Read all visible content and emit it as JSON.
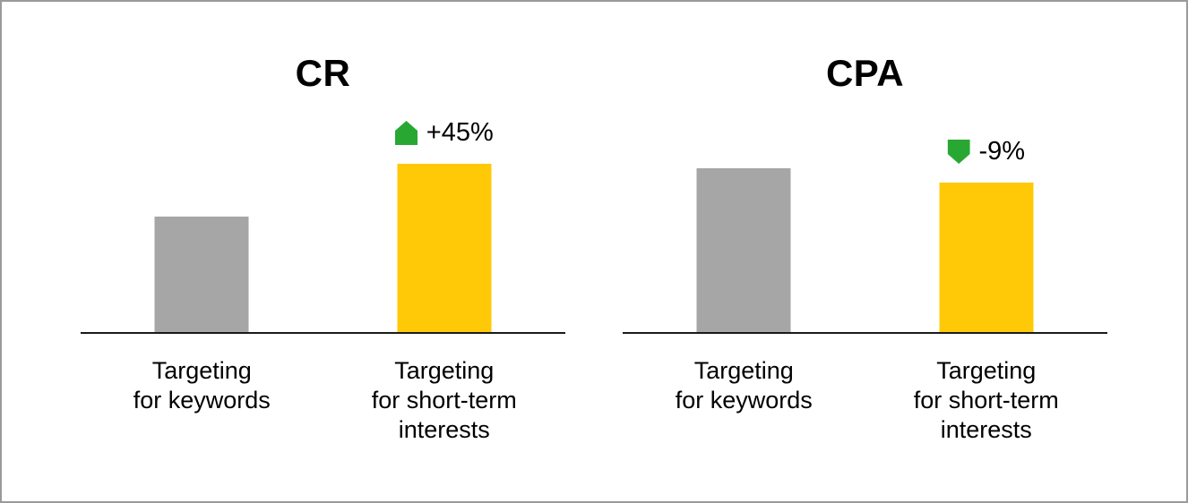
{
  "canvas": {
    "background": "#ffffff",
    "border_color": "#9a9a9a",
    "axis_color": "#1a1a1a"
  },
  "chart_data": [
    {
      "type": "bar",
      "title": "CR",
      "categories": [
        "Targeting for keywords",
        "Targeting for short-term interests"
      ],
      "categories_display": [
        "Targeting\nfor keywords",
        "Targeting\nfor short-term\ninterests"
      ],
      "values": [
        100,
        145
      ],
      "values_note": "relative index read from bar heights; no numeric axis shown, keywords bar = 100 baseline",
      "bar_colors": [
        "#A6A6A6",
        "#FFC907"
      ],
      "annotation": {
        "text": "+45%",
        "icon": "up-arrow",
        "color": "#28A832",
        "applies_to": "Targeting for short-term interests"
      },
      "xlabel": "",
      "ylabel": "",
      "ylim": [
        0,
        170
      ],
      "grid": false,
      "legend": false
    },
    {
      "type": "bar",
      "title": "CPA",
      "categories": [
        "Targeting for keywords",
        "Targeting for short-term interests"
      ],
      "categories_display": [
        "Targeting\nfor keywords",
        "Targeting\nfor short-term\ninterests"
      ],
      "values": [
        100,
        91
      ],
      "values_note": "relative index read from bar heights; no numeric axis shown, keywords bar = 100 baseline",
      "bar_colors": [
        "#A6A6A6",
        "#FFC907"
      ],
      "annotation": {
        "text": "-9%",
        "icon": "down-arrow",
        "color": "#28A832",
        "applies_to": "Targeting for short-term interests"
      },
      "xlabel": "",
      "ylabel": "",
      "ylim": [
        0,
        120
      ],
      "grid": false,
      "legend": false
    }
  ]
}
